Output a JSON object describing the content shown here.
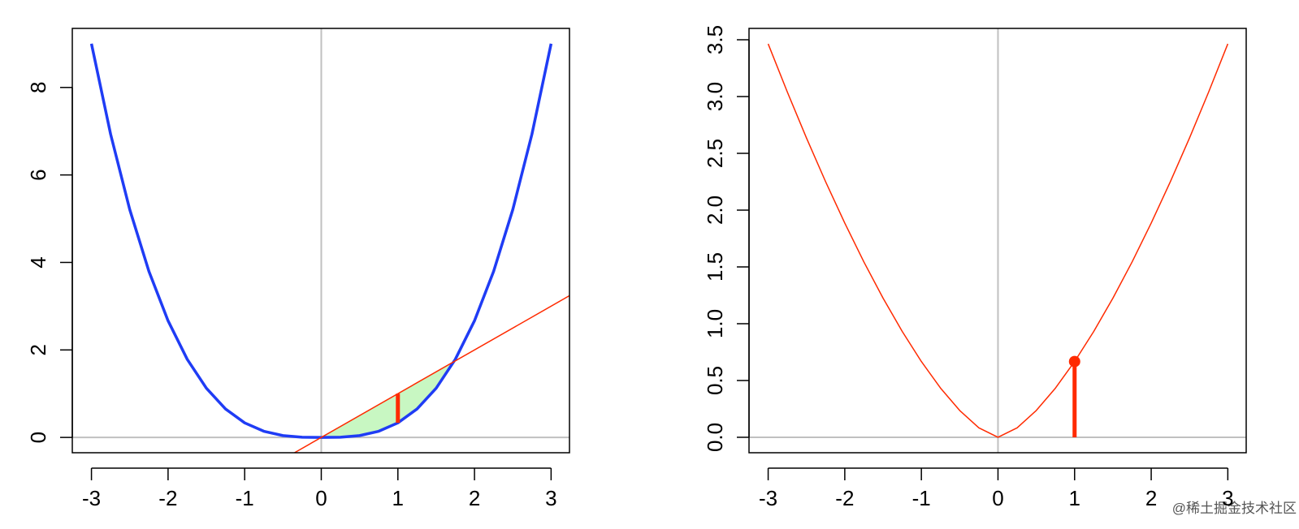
{
  "chart_data": [
    {
      "type": "line",
      "xlim": [
        -3.25,
        3.24
      ],
      "ylim": [
        -0.35,
        9.35
      ],
      "xticks": [
        -3,
        -2,
        -1,
        0,
        1,
        2,
        3
      ],
      "yticks": [
        0,
        2,
        4,
        6,
        8
      ],
      "reference_lines": {
        "h": 0,
        "v": 0,
        "color": "#c0c0c0"
      },
      "series": [
        {
          "style": "fill",
          "color": "#c8f7c2",
          "x": [
            0,
            1.732,
            1.5,
            1.25,
            1,
            0.75,
            0.5,
            0.25,
            0
          ],
          "values": [
            0,
            1.732,
            1.125,
            0.651,
            0.333,
            0.141,
            0.042,
            0.005,
            0
          ]
        },
        {
          "style": "line",
          "color": "#1f3cf5",
          "width": 3.5,
          "x": [
            -3,
            -2.75,
            -2.5,
            -2.25,
            -2,
            -1.75,
            -1.5,
            -1.25,
            -1,
            -0.75,
            -0.5,
            -0.25,
            0,
            0.25,
            0.5,
            0.75,
            1,
            1.25,
            1.5,
            1.75,
            2,
            2.25,
            2.5,
            2.75,
            3
          ],
          "values": [
            9,
            6.932,
            5.208,
            3.797,
            2.667,
            1.786,
            1.125,
            0.651,
            0.333,
            0.141,
            0.042,
            0.005,
            0,
            0.005,
            0.042,
            0.141,
            0.333,
            0.651,
            1.125,
            1.786,
            2.667,
            3.797,
            5.208,
            6.932,
            9
          ]
        },
        {
          "style": "line",
          "color": "#ff2a00",
          "width": 1.5,
          "x": [
            -0.35,
            3.24
          ],
          "values": [
            -0.35,
            3.24
          ]
        },
        {
          "style": "line",
          "color": "#ff2a00",
          "width": 5,
          "x": [
            1,
            1
          ],
          "values": [
            0.333,
            1
          ]
        }
      ]
    },
    {
      "type": "line",
      "xlim": [
        -3.25,
        3.24
      ],
      "ylim": [
        -0.136,
        3.6
      ],
      "xticks": [
        -3,
        -2,
        -1,
        0,
        1,
        2,
        3
      ],
      "yticks": [
        {
          "value": 0,
          "label": "0.0"
        },
        {
          "value": 0.5,
          "label": "0.5"
        },
        {
          "value": 1,
          "label": "1.0"
        },
        {
          "value": 1.5,
          "label": "1.5"
        },
        {
          "value": 2,
          "label": "2.0"
        },
        {
          "value": 2.5,
          "label": "2.5"
        },
        {
          "value": 3,
          "label": "3.0"
        },
        {
          "value": 3.5,
          "label": "3.5"
        }
      ],
      "reference_lines": {
        "h": 0,
        "v": 0,
        "color": "#c0c0c0"
      },
      "series": [
        {
          "style": "line",
          "color": "#ff2a00",
          "width": 1.5,
          "x": [
            -3,
            -2.75,
            -2.5,
            -2.25,
            -2,
            -1.75,
            -1.5,
            -1.25,
            -1,
            -0.75,
            -0.5,
            -0.25,
            0,
            0.25,
            0.5,
            0.75,
            1,
            1.25,
            1.5,
            1.75,
            2,
            2.25,
            2.5,
            2.75,
            3
          ],
          "values": [
            3.464,
            3.04,
            2.635,
            2.25,
            1.886,
            1.543,
            1.225,
            0.932,
            0.667,
            0.433,
            0.236,
            0.083,
            0,
            0.083,
            0.236,
            0.433,
            0.667,
            0.932,
            1.225,
            1.543,
            1.886,
            2.25,
            2.635,
            3.04,
            3.464
          ]
        },
        {
          "style": "line",
          "color": "#ff2a00",
          "width": 5,
          "x": [
            1,
            1
          ],
          "values": [
            0,
            0.667
          ]
        },
        {
          "style": "point",
          "color": "#ff2a00",
          "x": [
            1
          ],
          "values": [
            0.667
          ]
        }
      ]
    }
  ],
  "watermark": "@稀土掘金技术社区"
}
